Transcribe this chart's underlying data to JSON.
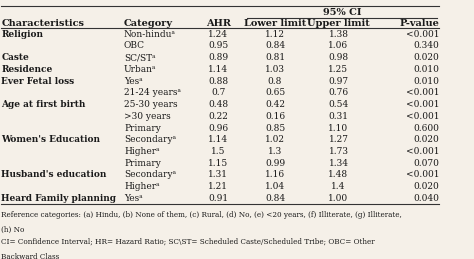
{
  "headers": [
    "Characteristics",
    "Category",
    "AHR",
    "Lower limit",
    "Upper limit",
    "P-value"
  ],
  "ci_header": "95% CI",
  "rows": [
    [
      "Religion",
      "Non-hinduᵃ",
      "1.24",
      "1.12",
      "1.38",
      "<0.001"
    ],
    [
      "",
      "OBC",
      "0.95",
      "0.84",
      "1.06",
      "0.340"
    ],
    [
      "Caste",
      "SC/STᵃ",
      "0.89",
      "0.81",
      "0.98",
      "0.020"
    ],
    [
      "Residence",
      "Urbanᵃ",
      "1.14",
      "1.03",
      "1.25",
      "0.010"
    ],
    [
      "Ever Fetal loss",
      "Yesᵃ",
      "0.88",
      "0.8",
      "0.97",
      "0.010"
    ],
    [
      "",
      "21-24 yearsᵃ",
      "0.7",
      "0.65",
      "0.76",
      "<0.001"
    ],
    [
      "Age at first birth",
      "25-30 years",
      "0.48",
      "0.42",
      "0.54",
      "<0.001"
    ],
    [
      "",
      ">30 years",
      "0.22",
      "0.16",
      "0.31",
      "<0.001"
    ],
    [
      "",
      "Primary",
      "0.96",
      "0.85",
      "1.10",
      "0.600"
    ],
    [
      "Women's Education",
      "Secondaryᵃ",
      "1.14",
      "1.02",
      "1.27",
      "0.020"
    ],
    [
      "",
      "Higherᵃ",
      "1.5",
      "1.3",
      "1.73",
      "<0.001"
    ],
    [
      "",
      "Primary",
      "1.15",
      "0.99",
      "1.34",
      "0.070"
    ],
    [
      "Husband's education",
      "Secondaryᵃ",
      "1.31",
      "1.16",
      "1.48",
      "<0.001"
    ],
    [
      "",
      "Higherᵃ",
      "1.21",
      "1.04",
      "1.4",
      "0.020"
    ],
    [
      "Heard Family planning",
      "Yesᵃ",
      "0.91",
      "0.84",
      "1.00",
      "0.040"
    ]
  ],
  "footnote1": "Reference categories: (a) Hindu, (b) None of them, (c) Rural, (d) No, (e) <20 years, (f) Illiterate, (g) Illiterate,",
  "footnote2": "(h) No",
  "footnote3": "CI= Confidence Interval; HR= Hazard Ratio; SC\\ST= Scheduled Caste/Scheduled Tribe; OBC= Other",
  "footnote4": "Backward Class",
  "bg_color": "#f5f0e8",
  "line_color": "#333333",
  "text_color": "#1a1a1a",
  "font_size": 6.5,
  "header_font_size": 7.0
}
